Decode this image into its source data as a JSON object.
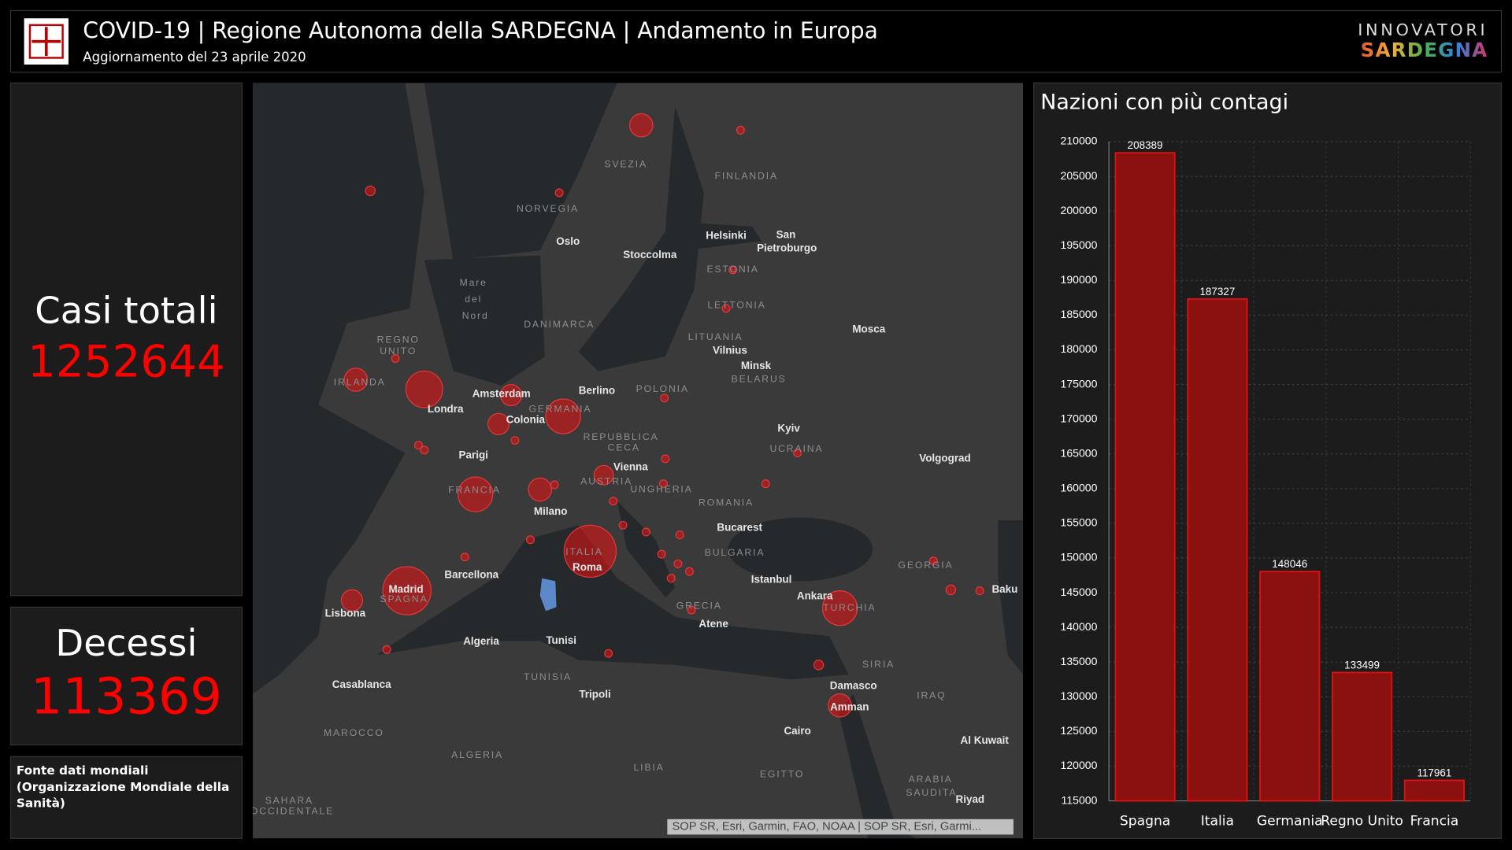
{
  "header": {
    "title": "COVID-19 | Regione Autonoma della SARDEGNA | Andamento in Europa",
    "subtitle": "Aggiornamento del 23 aprile 2020",
    "brand_top": "INNOVATORI",
    "brand_bottom": "SARDEGNA"
  },
  "stats": [
    {
      "label": "Casi totali",
      "value": "1252644"
    },
    {
      "label": "Decessi",
      "value": "113369"
    }
  ],
  "source": [
    "Fonte dati mondiali",
    "(Organizzazione Mondiale della",
    "Sanità)"
  ],
  "map": {
    "labels": [
      "SVEZIA",
      "FINLANDIA",
      "NORVEGIA",
      "Oslo",
      "Helsinki",
      "San",
      "Pietroburgo",
      "Stoccolma",
      "ESTONIA",
      "Mare",
      "del",
      "Nord",
      "LETTONIA",
      "DANIMARCA",
      "LITUANIA",
      "Vilnius",
      "Mosca",
      "REGNO",
      "UNITO",
      "Minsk",
      "BELARUS",
      "IRLANDA",
      "Amsterdam",
      "Berlino",
      "POLONIA",
      "Londra",
      "GERMANIA",
      "Colonia",
      "Kyiv",
      "REPUBBLICA",
      "CECA",
      "UCRAINA",
      "Parigi",
      "Vienna",
      "Volgograd",
      "AUSTRIA",
      "UNGHERIA",
      "FRANCIA",
      "ROMANIA",
      "Milano",
      "Bucarest",
      "ITALIA",
      "Roma",
      "BULGARIA",
      "GEORGIA",
      "Barcellona",
      "Madrid",
      "SPAGNA",
      "Istanbul",
      "Ankara",
      "TURCHIA",
      "Baku",
      "Lisbona",
      "GRECIA",
      "Atene",
      "Algeria",
      "Tunisi",
      "SIRIA",
      "Casablanca",
      "TUNISIA",
      "Tripoli",
      "Damasco",
      "IRAQ",
      "Amman",
      "MAROCCO",
      "Cairo",
      "Al Kuwait",
      "ALGERIA",
      "LIBIA",
      "EGITTO",
      "ARABIA",
      "SAUDITA",
      "Riyad",
      "SAHARA",
      "OCCIDENTALE"
    ],
    "attribution": "SOP SR, Esri, Garmin, FAO, NOAA | SOP SR, Esri, Garmi..."
  },
  "chart_data": {
    "type": "bar",
    "title": "Nazioni con più contagi",
    "categories": [
      "Spagna",
      "Italia",
      "Germania",
      "Regno Unito",
      "Francia"
    ],
    "values": [
      208389,
      187327,
      148046,
      133499,
      117961
    ],
    "color": "#8b1010",
    "ylim": [
      115000,
      210000
    ],
    "yticks": [
      115000,
      120000,
      125000,
      130000,
      135000,
      140000,
      145000,
      150000,
      155000,
      160000,
      165000,
      170000,
      175000,
      180000,
      185000,
      190000,
      195000,
      200000,
      205000,
      210000
    ],
    "grid": true
  }
}
